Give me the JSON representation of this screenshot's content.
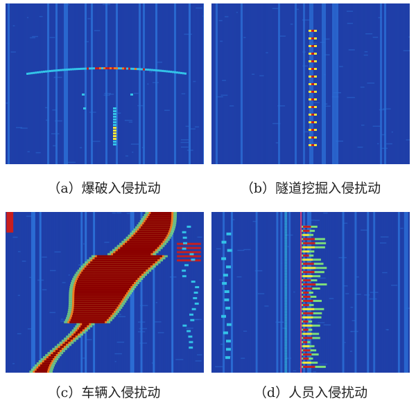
{
  "figure": {
    "panels": [
      {
        "id": "a",
        "caption": "（a）爆破入侵扰动",
        "event": "blasting"
      },
      {
        "id": "b",
        "caption": "（b）隧道挖掘入侵扰动",
        "event": "tunnel-excavation"
      },
      {
        "id": "c",
        "caption": "（c）车辆入侵扰动",
        "event": "vehicle"
      },
      {
        "id": "d",
        "caption": "（d）人员入侵扰动",
        "event": "personnel"
      }
    ],
    "colormap": [
      "#1f3fa8",
      "#2c6fd6",
      "#33c3e8",
      "#7fe07a",
      "#f5e63a",
      "#f07a1e",
      "#c81e1e",
      "#8b0000"
    ]
  }
}
